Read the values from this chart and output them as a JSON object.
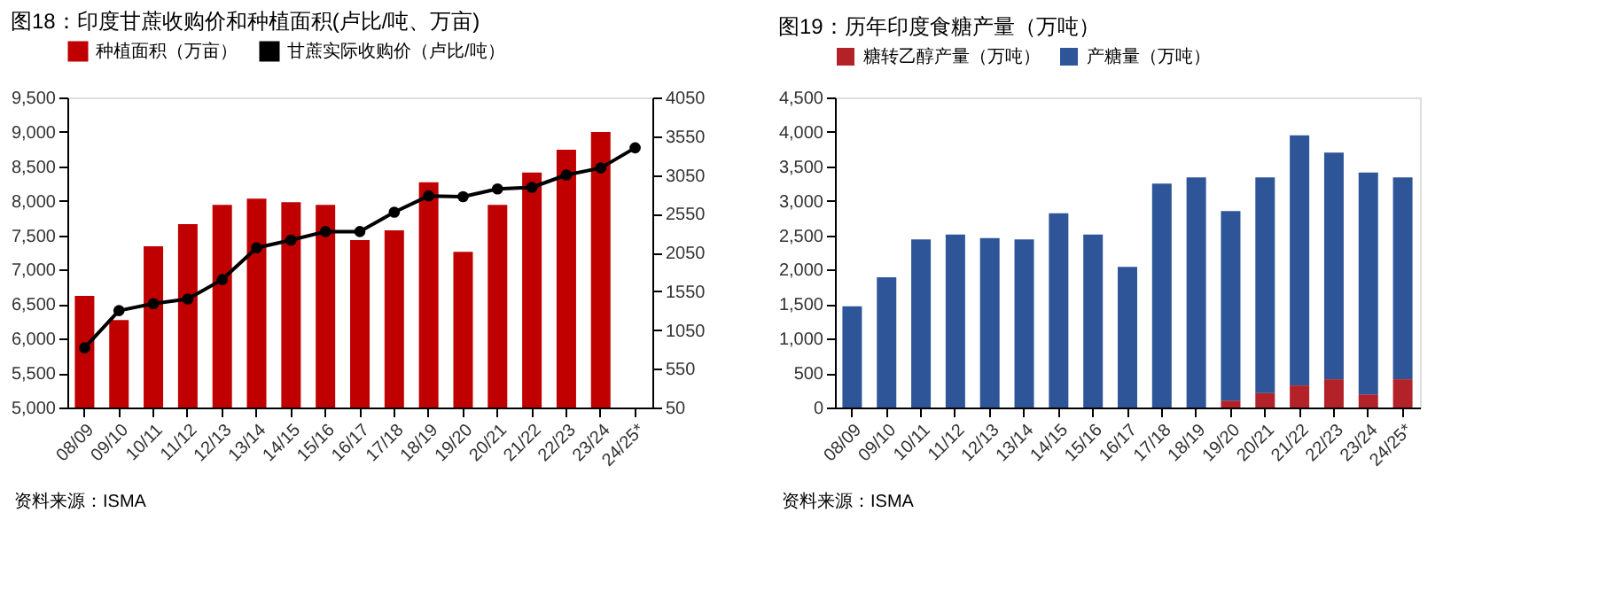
{
  "chart_data": [
    {
      "type": "bar",
      "title": "图18：印度甘蔗收购价和种植面积(卢比/吨、万亩)",
      "categories": [
        "08/09",
        "09/10",
        "10/11",
        "11/12",
        "12/13",
        "13/14",
        "14/15",
        "15/16",
        "16/17",
        "17/18",
        "18/19",
        "19/20",
        "20/21",
        "21/22",
        "22/23",
        "23/24",
        "24/25*"
      ],
      "series": [
        {
          "name": "种植面积（万亩）",
          "color": "#c00000",
          "values": [
            6620,
            6270,
            7340,
            7660,
            7940,
            8030,
            7980,
            7940,
            7430,
            7570,
            8270,
            7260,
            7940,
            8410,
            8740,
            9000,
            null
          ]
        },
        {
          "name": "甘蔗实际收购价（卢比/吨）",
          "type": "line",
          "axis": "y2",
          "color": "#000000",
          "values": [
            820,
            1300,
            1390,
            1450,
            1700,
            2110,
            2210,
            2320,
            2320,
            2570,
            2780,
            2770,
            2870,
            2890,
            3050,
            3140,
            3400
          ]
        }
      ],
      "ylim": [
        5000,
        9500
      ],
      "yticks": [
        {
          "value": 5000,
          "label": "5,000"
        },
        {
          "value": 5500,
          "label": "5,500"
        },
        {
          "value": 6000,
          "label": "6,000"
        },
        {
          "value": 6500,
          "label": "6,500"
        },
        {
          "value": 7000,
          "label": "7,000"
        },
        {
          "value": 7500,
          "label": "7,500"
        },
        {
          "value": 8000,
          "label": "8,000"
        },
        {
          "value": 8500,
          "label": "8,500"
        },
        {
          "value": 9000,
          "label": "9,000"
        },
        {
          "value": 9500,
          "label": "9,500"
        }
      ],
      "y2lim": [
        50,
        4050
      ],
      "y2ticks": [
        50,
        550,
        1050,
        1550,
        2050,
        2550,
        3050,
        3550,
        4050
      ],
      "marker": "circle",
      "legend": "top",
      "grid": false,
      "annotations": [
        "资料来源：ISMA"
      ]
    },
    {
      "type": "bar",
      "title": "图19：历年印度食糖产量（万吨）",
      "stacked": true,
      "categories": [
        "08/09",
        "09/10",
        "10/11",
        "11/12",
        "12/13",
        "13/14",
        "14/15",
        "15/16",
        "16/17",
        "17/18",
        "18/19",
        "19/20",
        "20/21",
        "21/22",
        "22/23",
        "23/24",
        "24/25*"
      ],
      "series": [
        {
          "name": "糖转乙醇产量（万吨）",
          "color": "#b22228",
          "values": [
            null,
            null,
            null,
            null,
            null,
            null,
            null,
            null,
            null,
            null,
            null,
            100,
            210,
            320,
            410,
            190,
            410
          ]
        },
        {
          "name": "产糖量（万吨）",
          "color": "#2e5597",
          "values": [
            1470,
            1890,
            2440,
            2510,
            2460,
            2440,
            2820,
            2510,
            2040,
            3250,
            3340,
            2750,
            3130,
            3630,
            3290,
            3220,
            2930
          ]
        }
      ],
      "ylim": [
        0,
        4500
      ],
      "yticks": [
        0,
        500,
        {
          "value": 1000,
          "label": "1,000"
        },
        {
          "value": 1500,
          "label": "1,500"
        },
        {
          "value": 2000,
          "label": "2,000"
        },
        {
          "value": 2500,
          "label": "2,500"
        },
        {
          "value": 3000,
          "label": "3,000"
        },
        {
          "value": 3500,
          "label": "3,500"
        },
        {
          "value": 4000,
          "label": "4,000"
        },
        {
          "value": 4500,
          "label": "4,500"
        }
      ],
      "legend": "top",
      "grid": false,
      "annotations": [
        "资料来源：ISMA"
      ]
    }
  ]
}
